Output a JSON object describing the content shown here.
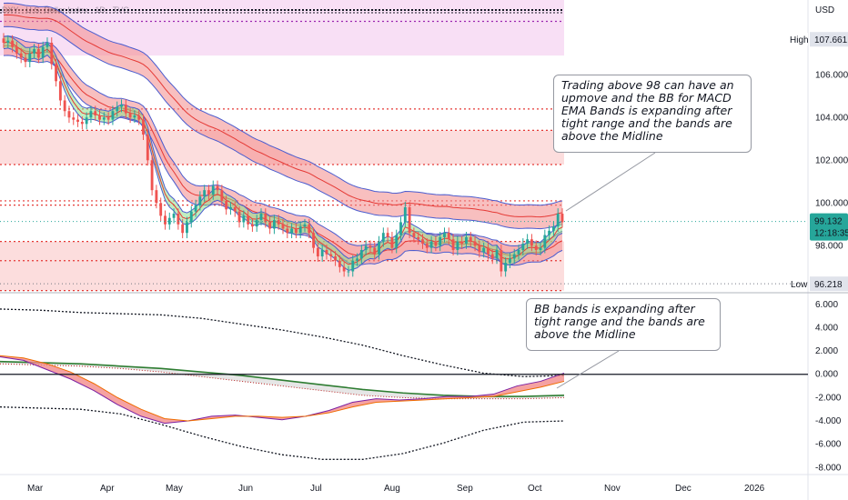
{
  "header": {
    "symbol": "DXY · U.S. Dollar Index · 1D · TVC",
    "currency": "USD"
  },
  "colors": {
    "up": "#26a69a",
    "down": "#ef5350",
    "band_fill": "#f28b8b",
    "band_line": "#4a5ccf",
    "ema_green": "#8ee08a",
    "zone": "#fbd5d5",
    "high_zone": "#f6d7f3",
    "level_line": "#e53935",
    "price_label": "#26a69a",
    "midline": "#131722",
    "slow_line": "#2e7d32",
    "grid": "#e0e3eb"
  },
  "chart_data": [
    {
      "type": "candlestick",
      "title": "",
      "x_labels": [
        "Mar",
        "Apr",
        "May",
        "Jun",
        "Jul",
        "Aug",
        "Sep",
        "Oct",
        "Nov",
        "Dec",
        "2026"
      ],
      "y_ticks": [
        "106.000",
        "104.000",
        "102.000",
        "100.000",
        "98.000"
      ],
      "ylim": [
        95.8,
        109.5
      ],
      "tags": {
        "high_label": "High",
        "high_value": "107.661",
        "low_label": "Low",
        "low_value": "96.218",
        "last_price": "99.132",
        "countdown": "12:18:35"
      },
      "levels": [
        108.5,
        104.4,
        103.4,
        101.8,
        100.1,
        99.9,
        98.2,
        97.3,
        95.9
      ],
      "zones": [
        {
          "from": 106.9,
          "to": 109.6,
          "kind": "high"
        },
        {
          "from": 101.8,
          "to": 103.4,
          "kind": "mid"
        },
        {
          "from": 95.9,
          "to": 98.2,
          "kind": "low"
        }
      ],
      "close_series": [
        107.5,
        107.6,
        107.3,
        107.0,
        106.8,
        106.6,
        107.0,
        107.2,
        106.8,
        107.3,
        107.5,
        106.5,
        105.7,
        104.8,
        104.3,
        104.0,
        103.9,
        103.8,
        103.7,
        104.0,
        104.3,
        104.1,
        103.9,
        104.0,
        103.9,
        104.3,
        104.5,
        104.6,
        104.2,
        104.0,
        104.1,
        103.9,
        103.2,
        102.0,
        100.6,
        100.0,
        99.4,
        99.0,
        99.3,
        99.5,
        99.0,
        98.6,
        99.1,
        99.6,
        99.9,
        100.3,
        100.6,
        100.4,
        100.8,
        100.6,
        100.1,
        99.7,
        99.8,
        99.6,
        99.1,
        99.4,
        99.0,
        98.9,
        99.2,
        99.5,
        99.1,
        98.8,
        99.2,
        99.0,
        98.8,
        98.6,
        98.8,
        98.6,
        98.9,
        99.0,
        98.6,
        97.9,
        97.5,
        97.8,
        97.6,
        97.5,
        97.3,
        97.0,
        96.8,
        96.8,
        97.3,
        97.4,
        97.8,
        98.0,
        97.9,
        97.6,
        98.2,
        98.6,
        98.4,
        97.9,
        98.5,
        99.1,
        99.8,
        98.6,
        98.4,
        98.3,
        98.1,
        97.9,
        98.2,
        98.0,
        98.4,
        98.6,
        98.3,
        97.8,
        98.2,
        98.1,
        98.4,
        98.2,
        98.0,
        97.7,
        97.9,
        97.6,
        97.4,
        97.8,
        96.8,
        97.2,
        97.4,
        97.6,
        97.8,
        98.1,
        98.3,
        98.0,
        97.8,
        97.9,
        98.5,
        98.7,
        98.9,
        99.5,
        99.1
      ]
    },
    {
      "type": "line",
      "title": "",
      "y_ticks": [
        "6.000",
        "4.000",
        "2.000",
        "0.000",
        "-2.000",
        "-4.000",
        "-6.000",
        "-8.000"
      ],
      "ylim": [
        -8.6,
        7.0
      ],
      "midline": 0,
      "upper_band": [
        5.6,
        5.5,
        5.3,
        5.2,
        5.1,
        4.8,
        4.3,
        3.8,
        3.2,
        2.5,
        1.6,
        0.8,
        0.1,
        -0.2,
        -0.1
      ],
      "lower_band": [
        -2.8,
        -2.9,
        -3.0,
        -3.4,
        -4.3,
        -5.3,
        -6.2,
        -6.9,
        -7.3,
        -7.3,
        -6.8,
        -5.9,
        -4.8,
        -4.1,
        -4.0
      ],
      "slow_line": [
        1.1,
        1.0,
        0.9,
        0.7,
        0.5,
        0.2,
        -0.1,
        -0.5,
        -0.9,
        -1.3,
        -1.6,
        -1.8,
        -1.9,
        -1.9,
        -1.8
      ],
      "lower_slow": [
        0.9,
        0.8,
        0.7,
        0.5,
        0.2,
        -0.2,
        -0.6,
        -1.0,
        -1.4,
        -1.8,
        -2.0,
        -2.1,
        -2.1,
        -2.1,
        -2.0
      ],
      "macd_fast": [
        1.5,
        1.2,
        0.4,
        -0.4,
        -1.4,
        -2.6,
        -3.6,
        -4.2,
        -4.0,
        -3.6,
        -3.5,
        -3.7,
        -3.9,
        -3.6,
        -3.1,
        -2.4,
        -2.1,
        -2.2,
        -2.1,
        -1.9,
        -1.9,
        -1.7,
        -1.0,
        -0.6,
        0.1
      ],
      "macd_slow": [
        1.6,
        1.4,
        0.9,
        0.2,
        -0.8,
        -2.0,
        -3.0,
        -3.8,
        -4.0,
        -3.8,
        -3.6,
        -3.6,
        -3.7,
        -3.6,
        -3.3,
        -2.8,
        -2.4,
        -2.3,
        -2.2,
        -2.1,
        -2.0,
        -1.9,
        -1.5,
        -1.1,
        -0.6
      ]
    }
  ],
  "annotations": [
    {
      "text": "Trading above 98 can have an upmove and the BB for MACD EMA Bands is expanding after tight range and the bands are above the Midline"
    },
    {
      "text": "BB bands is expanding after tight range and the bands are above the Midline"
    }
  ]
}
